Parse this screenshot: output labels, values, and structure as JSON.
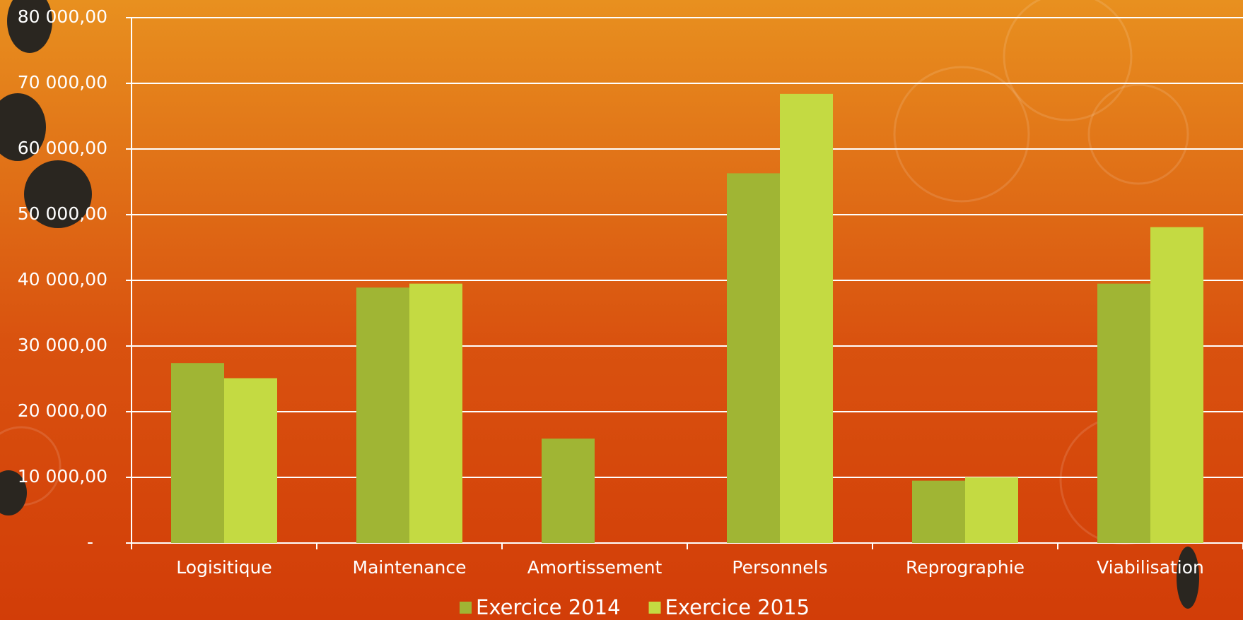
{
  "chart_data": {
    "type": "bar",
    "categories": [
      "Logisitique",
      "Maintenance",
      "Amortissement",
      "Personnels",
      "Reprographie",
      "Viabilisation"
    ],
    "series": [
      {
        "name": "Exercice 2014",
        "color": "#a0b534",
        "values": [
          27400,
          38900,
          15900,
          56300,
          9500,
          39500
        ]
      },
      {
        "name": "Exercice 2015",
        "color": "#c4da42",
        "values": [
          25100,
          39500,
          null,
          68400,
          10000,
          48100
        ]
      }
    ],
    "ylim": [
      0,
      80000
    ],
    "yticks": [
      {
        "value": 0,
        "label": "-"
      },
      {
        "value": 10000,
        "label": "10 000,00"
      },
      {
        "value": 20000,
        "label": "20 000,00"
      },
      {
        "value": 30000,
        "label": "30 000,00"
      },
      {
        "value": 40000,
        "label": "40 000,00"
      },
      {
        "value": 50000,
        "label": "50 000,00"
      },
      {
        "value": 60000,
        "label": "60 000,00"
      },
      {
        "value": 70000,
        "label": "70 000,00"
      },
      {
        "value": 80000,
        "label": "80 000,00"
      }
    ],
    "grid": true,
    "legend": "bottom"
  }
}
